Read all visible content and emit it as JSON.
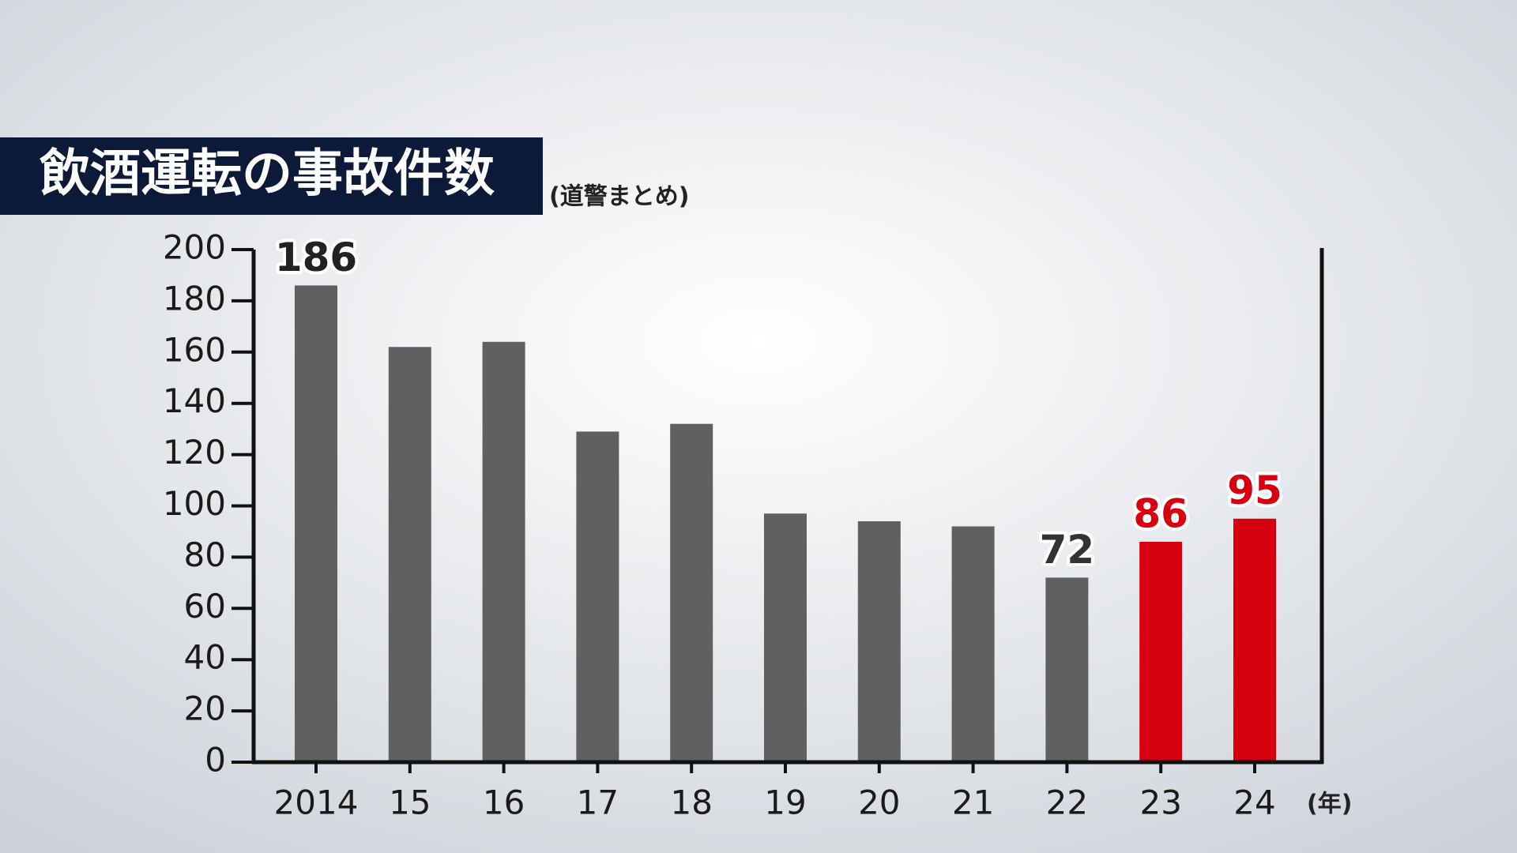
{
  "chart_data": {
    "type": "bar",
    "title": "飲酒運転の事故件数",
    "subtitle": "(道警まとめ)",
    "x_unit": "(年)",
    "categories": [
      "2014",
      "15",
      "16",
      "17",
      "18",
      "19",
      "20",
      "21",
      "22",
      "23",
      "24"
    ],
    "values": [
      186,
      162,
      164,
      129,
      132,
      97,
      94,
      92,
      72,
      86,
      95
    ],
    "value_labels": [
      "186",
      null,
      null,
      null,
      null,
      null,
      null,
      null,
      "72",
      "86",
      "95"
    ],
    "colors": [
      "#606060",
      "#606060",
      "#606060",
      "#606060",
      "#606060",
      "#606060",
      "#606060",
      "#606060",
      "#606060",
      "#d7000f",
      "#d7000f"
    ],
    "label_colors": [
      "#222222",
      null,
      null,
      null,
      null,
      null,
      null,
      null,
      "#333333",
      "#d7000f",
      "#d7000f"
    ],
    "ylim": [
      0,
      200
    ],
    "yticks": [
      0,
      20,
      40,
      60,
      80,
      100,
      120,
      140,
      160,
      180,
      200
    ]
  }
}
